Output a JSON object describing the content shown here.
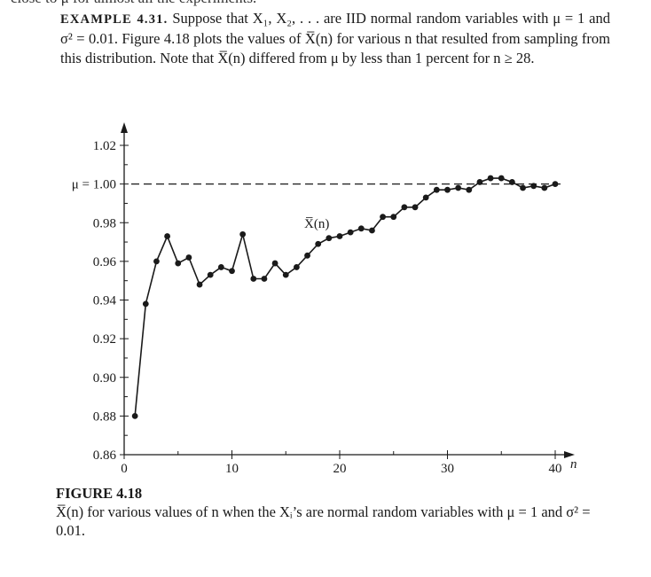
{
  "top_line": "close to μ for almost all the experiments.",
  "example": {
    "label": "EXAMPLE 4.31.",
    "text": "Suppose that X₁, X₂, . . . are IID normal random variables with μ = 1 and σ² = 0.01. Figure 4.18 plots the values of X̅(n) for various n that resulted from sampling from this distribution. Note that X̅(n) differed from μ by less than 1 percent for n ≥ 28."
  },
  "figure": {
    "title": "FIGURE 4.18",
    "caption": "X̅(n) for various values of n when the Xᵢ’s are normal random variables with μ = 1 and σ² = 0.01."
  },
  "chart_data": {
    "type": "line",
    "series_label": "X̅(n)",
    "mu_label": "μ = 1.00",
    "xlabel": "n",
    "x_ticks": [
      0,
      10,
      20,
      30,
      40
    ],
    "y_ticks": [
      "1.02",
      "1.00",
      "0.98",
      "0.96",
      "0.94",
      "0.92",
      "0.90",
      "0.88",
      "0.86"
    ],
    "y_tick_values": [
      1.02,
      1.0,
      0.98,
      0.96,
      0.94,
      0.92,
      0.9,
      0.88,
      0.86
    ],
    "xlim": [
      0,
      40
    ],
    "ylim": [
      0.86,
      1.02
    ],
    "reference_y": 1.0,
    "x": [
      1,
      2,
      3,
      4,
      5,
      6,
      7,
      8,
      9,
      10,
      11,
      12,
      13,
      14,
      15,
      16,
      17,
      18,
      19,
      20,
      21,
      22,
      23,
      24,
      25,
      26,
      27,
      28,
      29,
      30,
      31,
      32,
      33,
      34,
      35,
      36,
      37,
      38,
      39,
      40
    ],
    "values": [
      0.88,
      0.938,
      0.96,
      0.973,
      0.959,
      0.962,
      0.948,
      0.953,
      0.957,
      0.955,
      0.974,
      0.951,
      0.951,
      0.959,
      0.953,
      0.957,
      0.963,
      0.969,
      0.972,
      0.973,
      0.975,
      0.977,
      0.976,
      0.983,
      0.983,
      0.988,
      0.988,
      0.993,
      0.997,
      0.997,
      0.998,
      0.997,
      1.001,
      1.003,
      1.003,
      1.001,
      0.998,
      0.999,
      0.998,
      1.0
    ]
  }
}
